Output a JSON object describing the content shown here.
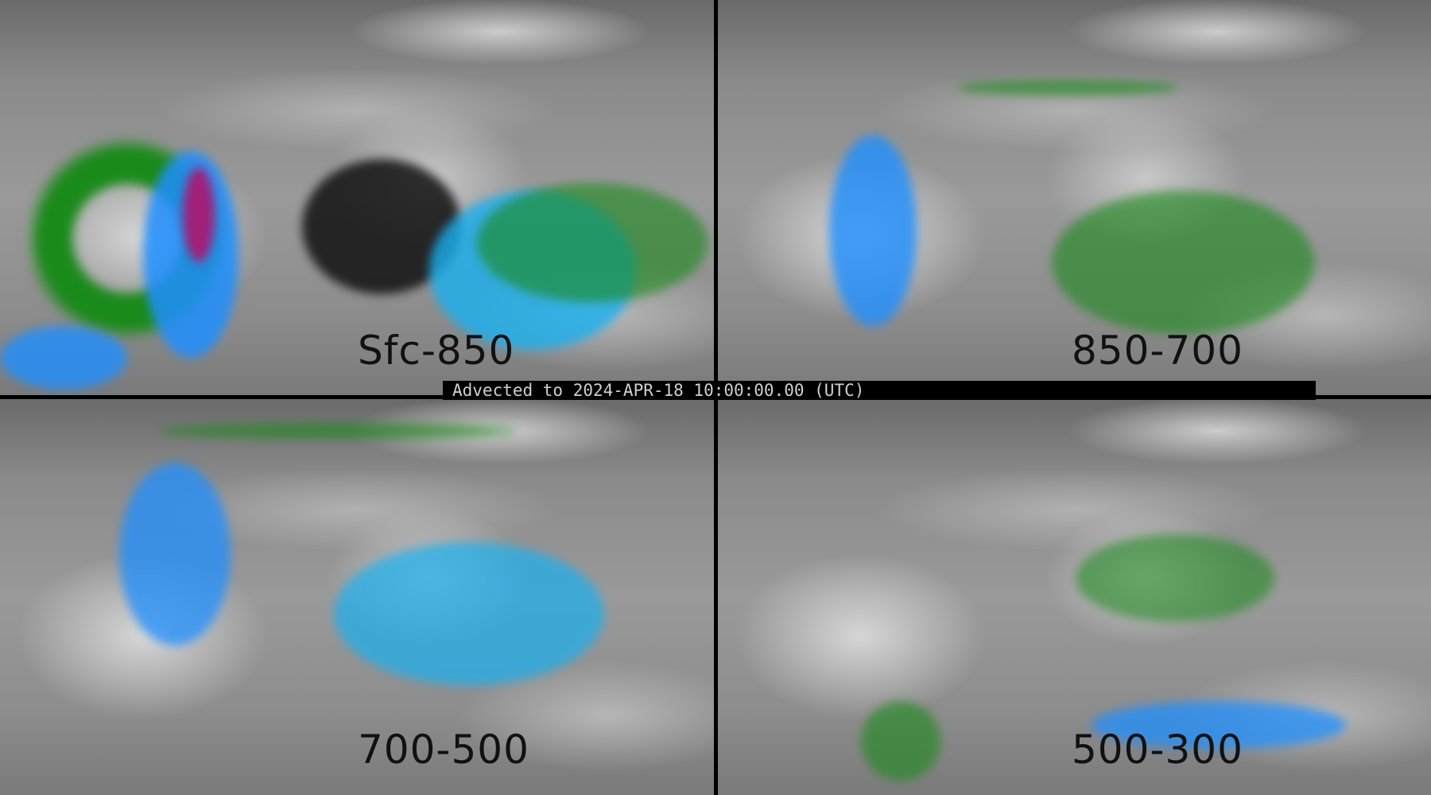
{
  "panels": [
    {
      "label": "Sfc-850"
    },
    {
      "label": "850-700"
    },
    {
      "label": "700-500"
    },
    {
      "label": "500-300"
    }
  ],
  "timestamp_bar": "Advected to 2024-APR-18 10:00:00.00 (UTC)",
  "colors": {
    "green": "#1a8a1a",
    "blue": "#1f8fff",
    "cyan": "#19c8f0",
    "magenta": "#a0207a",
    "background_gray": "#8a8a8a"
  }
}
